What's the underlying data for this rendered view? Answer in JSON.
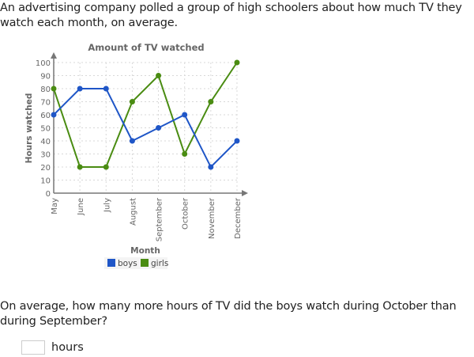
{
  "intro_text": "An advertising company polled a group of high schoolers about how much TV they watch each month, on average.",
  "question_text": "On average, how many more hours of TV did the boys watch during October than during September?",
  "answer": {
    "value": "",
    "placeholder": "",
    "unit": "hours"
  },
  "colors": {
    "boys": "#1f56c7",
    "girls": "#4a8c12",
    "axis": "#777777",
    "grid": "#d8d8d8",
    "text": "#666666"
  },
  "chart_data": {
    "type": "line",
    "title": "Amount of TV watched",
    "xlabel": "Month",
    "ylabel": "Hours watched",
    "categories": [
      "May",
      "June",
      "July",
      "August",
      "September",
      "October",
      "November",
      "December"
    ],
    "series": [
      {
        "name": "boys",
        "color": "#1f56c7",
        "values": [
          60,
          80,
          80,
          40,
          50,
          60,
          20,
          40
        ]
      },
      {
        "name": "girls",
        "color": "#4a8c12",
        "values": [
          80,
          20,
          20,
          70,
          90,
          30,
          70,
          100
        ]
      }
    ],
    "yticks": [
      0,
      10,
      20,
      30,
      40,
      50,
      60,
      70,
      80,
      90,
      100
    ],
    "ylim": [
      0,
      100
    ],
    "grid": true,
    "legend_position": "bottom"
  }
}
